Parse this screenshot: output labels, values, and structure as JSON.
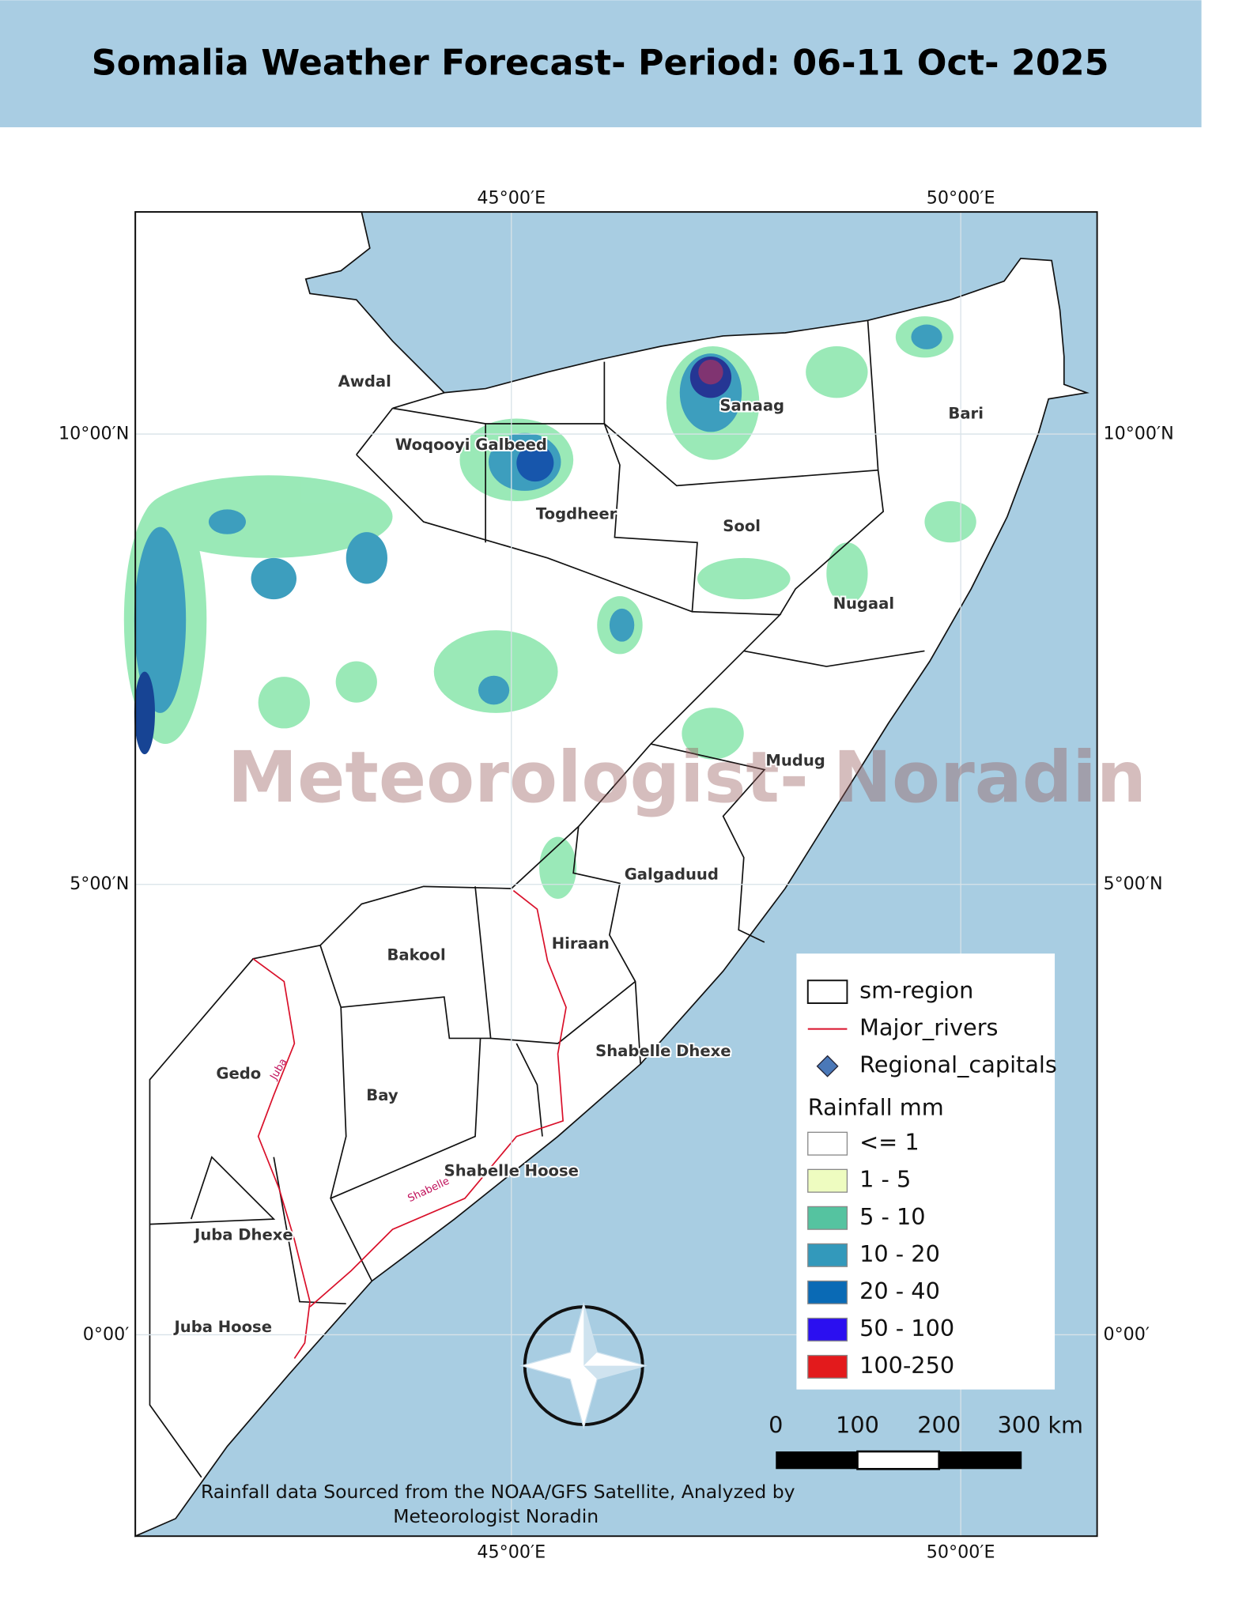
{
  "header": {
    "title": "Somalia Weather Forecast- Period:  06-11 Oct- 2025"
  },
  "map": {
    "lon_labels": [
      "45°00′E",
      "50°00′E"
    ],
    "lat_labels": [
      "10°00′N",
      "5°00′N",
      "0°00′"
    ],
    "regions": [
      "Awdal",
      "Woqooyi Galbeed",
      "Sanaag",
      "Bari",
      "Togdheer",
      "Sool",
      "Nugaal",
      "Mudug",
      "Galgaduud",
      "Hiraan",
      "Bakool",
      "Shabelle Dhexe",
      "Gedo",
      "Bay",
      "Shabelle Hoose",
      "Juba Dhexe",
      "Juba Hoose"
    ],
    "rivers": [
      "Juba",
      "Shabelle"
    ],
    "watermark": "Meteorologist- Noradin",
    "legend": {
      "layers": [
        "sm-region",
        "Major_rivers",
        "Regional_capitals"
      ],
      "rainfall_title": "Rainfall mm",
      "classes": [
        {
          "label": "<= 1",
          "color": "#ffffff"
        },
        {
          "label": "1 - 5",
          "color": "#eefcc0"
        },
        {
          "label": "5 - 10",
          "color": "#55c3a0"
        },
        {
          "label": "10 - 20",
          "color": "#3399bb"
        },
        {
          "label": "20 - 40",
          "color": "#0a6ab5"
        },
        {
          "label": "50 - 100",
          "color": "#2b0ff0"
        },
        {
          "label": "100-250",
          "color": "#e31a1c"
        }
      ]
    },
    "scale_bar": {
      "labels": [
        "0",
        "100",
        "200",
        "300 km"
      ]
    },
    "credit": [
      "Rainfall data Sourced from the NOAA/GFS Satellite, Analyzed by",
      "Meteorologist Noradin"
    ]
  }
}
